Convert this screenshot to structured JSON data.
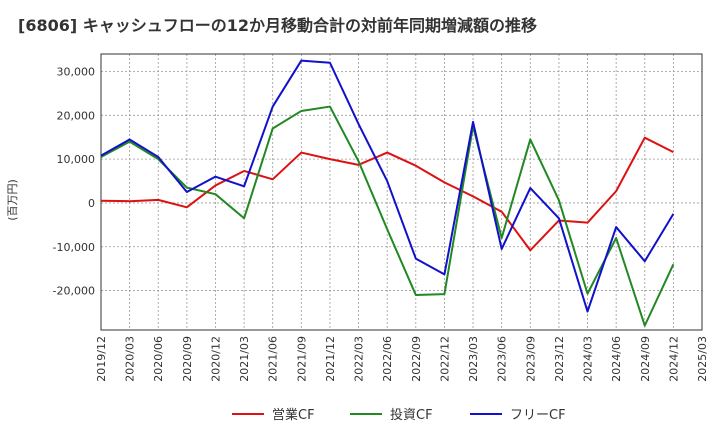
{
  "chart_data": {
    "type": "line",
    "title": "[6806]  キャッシュフローの12か月移動合計の対前年同期増減額の推移",
    "ylabel": "(百万円)",
    "xlabel": "",
    "ylim": [
      -29000,
      34000
    ],
    "grid": true,
    "legend_position": "bottom",
    "yticks": [
      30000,
      20000,
      10000,
      0,
      -10000,
      -20000
    ],
    "ytick_labels": [
      "30,000",
      "20,000",
      "10,000",
      "0",
      "-10,000",
      "-20,000"
    ],
    "x_tick_labels": [
      "2019/12",
      "2020/03",
      "2020/06",
      "2020/09",
      "2020/12",
      "2021/03",
      "2021/06",
      "2021/09",
      "2021/12",
      "2022/03",
      "2022/06",
      "2022/09",
      "2022/12",
      "2023/03",
      "2023/06",
      "2023/09",
      "2023/12",
      "2024/03",
      "2024/06",
      "2024/09",
      "2024/12",
      "2025/03"
    ],
    "categories": [
      "2019/12",
      "2020/03",
      "2020/06",
      "2020/09",
      "2020/12",
      "2021/03",
      "2021/06",
      "2021/09",
      "2021/12",
      "2022/03",
      "2022/06",
      "2022/09",
      "2022/12",
      "2023/03",
      "2023/06",
      "2023/09",
      "2023/12",
      "2024/03",
      "2024/06",
      "2024/09",
      "2024/12"
    ],
    "series": [
      {
        "name": "営業CF",
        "color": "#dd1111",
        "values": [
          500,
          400,
          700,
          -1000,
          4000,
          7300,
          5400,
          11500,
          10000,
          8700,
          11500,
          8500,
          4700,
          1500,
          -2000,
          -10800,
          -4000,
          -4500,
          2700,
          14900,
          11600
        ]
      },
      {
        "name": "投資CF",
        "color": "#228822",
        "values": [
          10500,
          14000,
          10000,
          3500,
          2000,
          -3500,
          17000,
          21000,
          22000,
          9500,
          -6000,
          -21000,
          -20800,
          17500,
          -8000,
          14500,
          600,
          -20700,
          -8000,
          -28000,
          -14000
        ]
      },
      {
        "name": "フリーCF",
        "color": "#1111cc",
        "values": [
          10800,
          14500,
          10500,
          2500,
          6000,
          3800,
          22000,
          32500,
          32000,
          18000,
          5000,
          -12700,
          -16300,
          18500,
          -10500,
          3400,
          -3500,
          -24800,
          -5500,
          -13300,
          -2500
        ]
      }
    ]
  }
}
